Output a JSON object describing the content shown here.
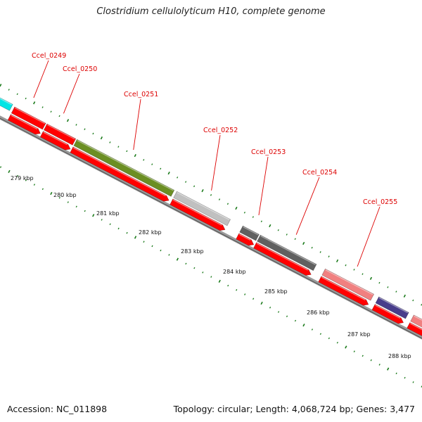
{
  "title": "Clostridium cellulolyticum H10, complete genome",
  "footer": {
    "accession": "Accession: NC_011898",
    "summary": "Topology: circular; Length: 4,068,724 bp; Genes: 3,477"
  },
  "scale_labels": [
    "279 kbp",
    "280 kbp",
    "281 kbp",
    "282 kbp",
    "283 kbp",
    "284 kbp",
    "285 kbp",
    "286 kbp",
    "287 kbp",
    "288 kbp"
  ],
  "genes": [
    {
      "label": "Ccel_0249",
      "color": "#ff0000"
    },
    {
      "label": "Ccel_0250",
      "color": "#ff0000"
    },
    {
      "label": "Ccel_0251",
      "color": "#6b8e23"
    },
    {
      "label": "Ccel_0252",
      "color": "#c0c0c0"
    },
    {
      "label": "Ccel_0253",
      "color": "#606060"
    },
    {
      "label": "Ccel_0254",
      "color": "#606060"
    },
    {
      "label": "Ccel_0255",
      "color": "#f08080"
    }
  ],
  "colors": {
    "backbone": "#888888",
    "tick": "#1a7a1a",
    "cds": "#ff0000",
    "gene_label": "#dd0000",
    "cyan_feature": "#00e5e5",
    "dark_blue_feature": "#483d8b",
    "light_red_feature": "#f08080"
  }
}
